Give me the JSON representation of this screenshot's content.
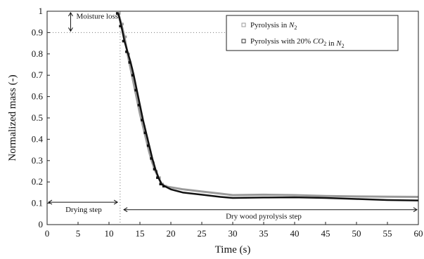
{
  "chart_data": {
    "type": "line",
    "xlabel": "Time (s)",
    "ylabel": "Normalized mass (-)",
    "xlim": [
      0,
      60
    ],
    "ylim": [
      0,
      1
    ],
    "x_ticks": [
      "0",
      "5",
      "10",
      "15",
      "20",
      "25",
      "30",
      "35",
      "40",
      "45",
      "50",
      "55",
      "60"
    ],
    "y_ticks": [
      "0",
      "0.1",
      "0.2",
      "0.3",
      "0.4",
      "0.5",
      "0.6",
      "0.7",
      "0.8",
      "0.9",
      "1"
    ],
    "grid": false,
    "legend_position": "top-right",
    "legend": {
      "n2": [
        "Pyrolysis in ",
        "N",
        "2"
      ],
      "co2": [
        "Pyrolysis with 20% ",
        "CO",
        "2",
        " in ",
        "N",
        "2"
      ]
    },
    "series": [
      {
        "name": "Pyrolysis in N2",
        "color": "#9a9a9a",
        "x": [
          11.5,
          12.0,
          12.5,
          13.0,
          13.5,
          14.0,
          14.5,
          15.0,
          15.5,
          16.0,
          16.5,
          17.0,
          17.5,
          18.0,
          18.5,
          19.0,
          20,
          22,
          25,
          28,
          30,
          35,
          40,
          45,
          50,
          55,
          60
        ],
        "y": [
          0.99,
          0.94,
          0.88,
          0.8,
          0.73,
          0.66,
          0.59,
          0.52,
          0.46,
          0.4,
          0.34,
          0.29,
          0.25,
          0.22,
          0.19,
          0.18,
          0.175,
          0.165,
          0.155,
          0.145,
          0.138,
          0.14,
          0.138,
          0.134,
          0.132,
          0.131,
          0.13
        ]
      },
      {
        "name": "Pyrolysis with 20% CO2 in N2",
        "color": "#111111",
        "x": [
          11.5,
          12.0,
          12.5,
          13.0,
          13.5,
          14.0,
          14.5,
          15.0,
          15.5,
          16.0,
          16.5,
          17.0,
          17.5,
          18.0,
          18.5,
          19.0,
          20,
          22,
          25,
          28,
          30,
          35,
          40,
          45,
          50,
          55,
          60
        ],
        "y": [
          0.99,
          0.93,
          0.86,
          0.81,
          0.76,
          0.7,
          0.63,
          0.56,
          0.49,
          0.43,
          0.37,
          0.31,
          0.26,
          0.22,
          0.19,
          0.18,
          0.165,
          0.15,
          0.14,
          0.13,
          0.125,
          0.127,
          0.128,
          0.125,
          0.12,
          0.115,
          0.113
        ]
      }
    ],
    "annotations": {
      "moisture_loss": "Moisture loss",
      "drying_step": "Drying step",
      "pyrolysis_step": "Dry wood pyrolysis step"
    }
  }
}
